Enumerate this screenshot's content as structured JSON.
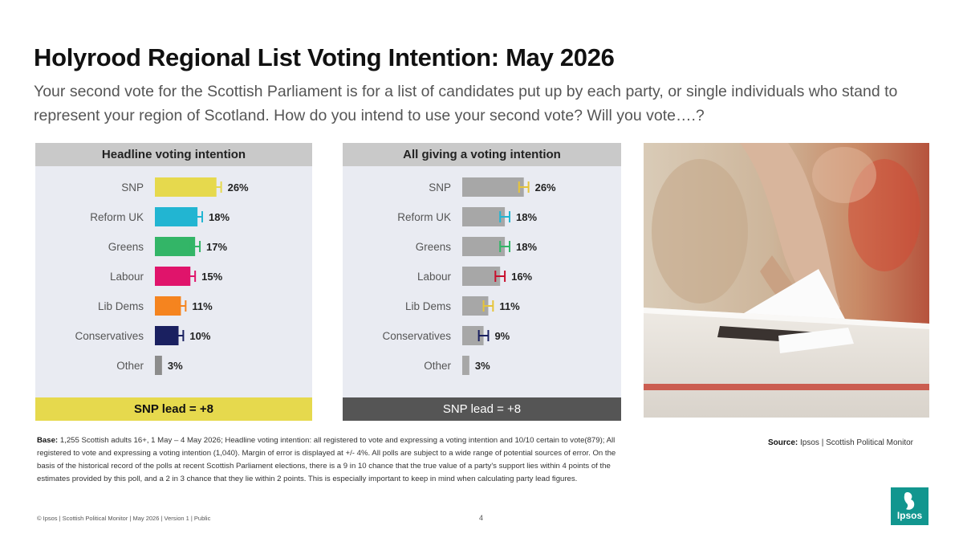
{
  "title": "Holyrood Regional List Voting Intention: May 2026",
  "subtitle": "Your second vote for the Scottish Parliament is for a list of candidates put up by each party, or single individuals who stand to represent your region of Scotland. How do you intend to use your second vote? Will you vote….?",
  "chart_data": [
    {
      "type": "bar",
      "orientation": "horizontal",
      "title": "Headline voting intention",
      "categories": [
        "SNP",
        "Reform UK",
        "Greens",
        "Labour",
        "Lib Dems",
        "Conservatives",
        "Other"
      ],
      "values": [
        26,
        18,
        17,
        15,
        11,
        10,
        3
      ],
      "value_labels": [
        "26%",
        "18%",
        "17%",
        "15%",
        "11%",
        "10%",
        "3%"
      ],
      "colors": [
        "#e6d94d",
        "#22b5d2",
        "#33b567",
        "#e0146b",
        "#f5841f",
        "#1a2060",
        "#8c8c8c"
      ],
      "error_bar_colors": [
        "#e6d94d",
        "#22b5d2",
        "#33b567",
        "#e0146b",
        "#f5841f",
        "#1a2060",
        null
      ],
      "error_margin": 4,
      "footer": "SNP lead = +8"
    },
    {
      "type": "bar",
      "orientation": "horizontal",
      "title": "All giving a voting intention",
      "categories": [
        "SNP",
        "Reform UK",
        "Greens",
        "Labour",
        "Lib Dems",
        "Conservatives",
        "Other"
      ],
      "values": [
        26,
        18,
        18,
        16,
        11,
        9,
        3
      ],
      "value_labels": [
        "26%",
        "18%",
        "18%",
        "16%",
        "11%",
        "9%",
        "3%"
      ],
      "colors": [
        "#a7a7a7",
        "#a7a7a7",
        "#a7a7a7",
        "#a7a7a7",
        "#a7a7a7",
        "#a7a7a7",
        "#a7a7a7"
      ],
      "error_bar_colors": [
        "#e6c43a",
        "#22b5d2",
        "#33b567",
        "#c8102e",
        "#e6c43a",
        "#1a2060",
        null
      ],
      "error_margin": 4,
      "footer": "SNP lead = +8"
    }
  ],
  "base": {
    "label": "Base:",
    "text": "1,255 Scottish adults 16+, 1 May – 4 May 2026; Headline voting intention: all registered to vote and expressing a voting intention and 10/10 certain to vote(879); All registered to vote and expressing a voting intention (1,040). Margin of error is displayed at +/- 4%. All polls are subject to a wide range of potential sources of error. On the basis of the historical record of the polls at recent Scottish Parliament elections, there is a 9 in 10 chance that the true value of a party's support lies within 4 points of the estimates provided by this poll, and a 2 in 3 chance that they lie within 2 points. This is especially important to keep in mind when calculating party lead figures."
  },
  "source": {
    "label": "Source:",
    "text": "Ipsos | Scottish Political Monitor"
  },
  "footer": "© Ipsos | Scottish Political Monitor | May 2026 | Version 1 | Public",
  "page_number": "4",
  "logo_text": "Ipsos"
}
